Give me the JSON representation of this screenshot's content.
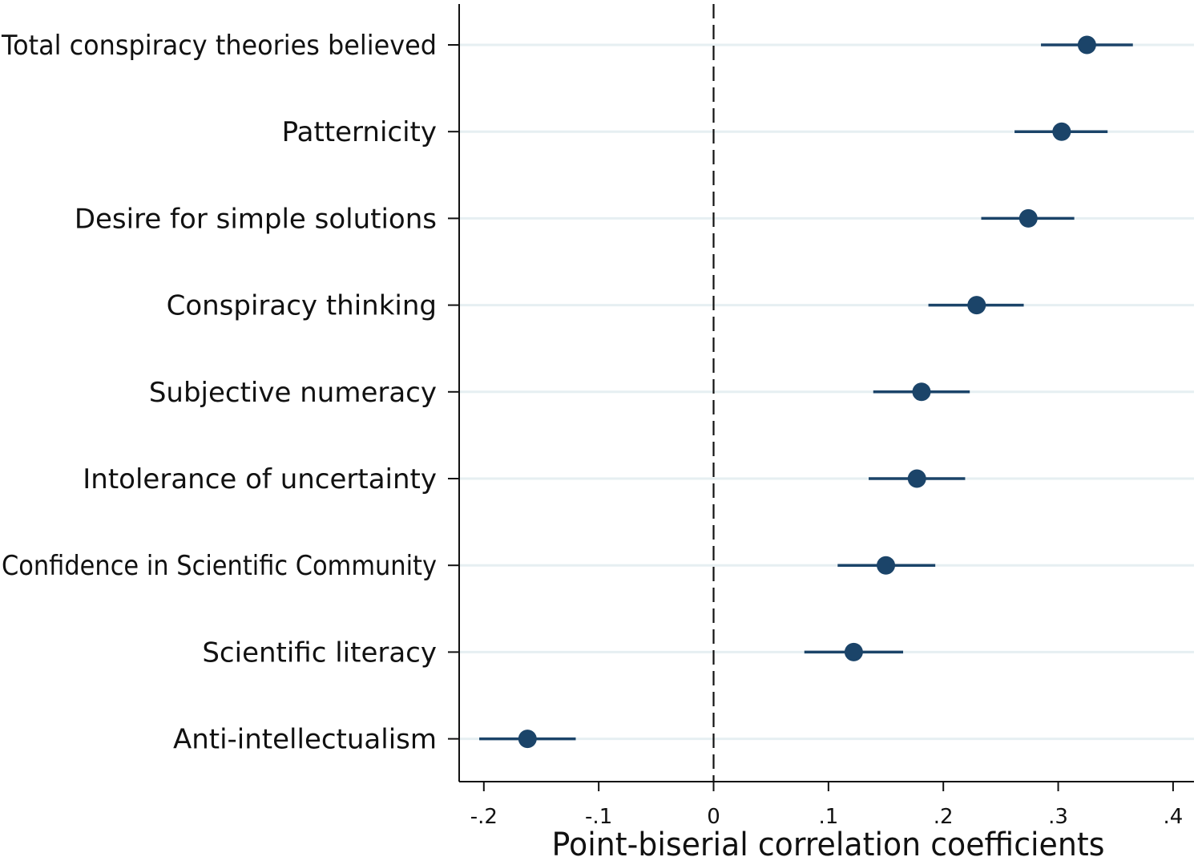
{
  "chart_data": {
    "type": "scatter",
    "orientation": "horizontal",
    "title": "",
    "xlabel": "Point-biserial correlation coefficients",
    "ylabel": "",
    "xlim": [
      -0.22,
      0.42
    ],
    "xticks": [
      -0.2,
      -0.1,
      0,
      0.1,
      0.2,
      0.3,
      0.4
    ],
    "xtick_labels": [
      "-.2",
      "-.1",
      "0",
      ".1",
      ".2",
      ".3",
      ".4"
    ],
    "reference_line": {
      "x": 0,
      "style": "dashed"
    },
    "grid": "horizontal",
    "legend": "none",
    "marker_color": "#1b4469",
    "grid_color": "#e6eff2",
    "items": [
      {
        "label": "Total conspiracy theories believed",
        "estimate": 0.325,
        "ci_low": 0.285,
        "ci_high": 0.365
      },
      {
        "label": "Patternicity",
        "estimate": 0.303,
        "ci_low": 0.262,
        "ci_high": 0.343
      },
      {
        "label": "Desire for simple solutions",
        "estimate": 0.274,
        "ci_low": 0.233,
        "ci_high": 0.314
      },
      {
        "label": "Conspiracy thinking",
        "estimate": 0.229,
        "ci_low": 0.187,
        "ci_high": 0.27
      },
      {
        "label": "Subjective numeracy",
        "estimate": 0.181,
        "ci_low": 0.139,
        "ci_high": 0.223
      },
      {
        "label": "Intolerance of uncertainty",
        "estimate": 0.177,
        "ci_low": 0.135,
        "ci_high": 0.219
      },
      {
        "label": "Confidence in Scientific Community",
        "estimate": 0.15,
        "ci_low": 0.108,
        "ci_high": 0.193
      },
      {
        "label": "Scientific literacy",
        "estimate": 0.122,
        "ci_low": 0.079,
        "ci_high": 0.165
      },
      {
        "label": "Anti-intellectualism",
        "estimate": -0.162,
        "ci_low": -0.204,
        "ci_high": -0.12
      }
    ]
  }
}
